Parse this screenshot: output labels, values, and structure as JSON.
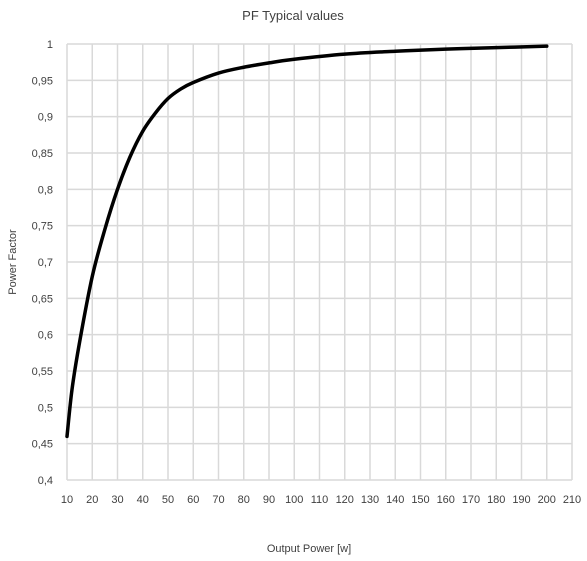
{
  "chart_data": {
    "type": "line",
    "title": "PF Typical values",
    "xlabel": "Output Power [w]",
    "ylabel": "Power Factor",
    "xlim": [
      10,
      210
    ],
    "ylim": [
      0.4,
      1.0
    ],
    "x_ticks": [
      10,
      20,
      30,
      40,
      50,
      60,
      70,
      80,
      90,
      100,
      110,
      120,
      130,
      140,
      150,
      160,
      170,
      180,
      190,
      200,
      210
    ],
    "y_ticks": [
      {
        "value": 0.4,
        "label": "0,4"
      },
      {
        "value": 0.45,
        "label": "0,45"
      },
      {
        "value": 0.5,
        "label": "0,5"
      },
      {
        "value": 0.55,
        "label": "0,55"
      },
      {
        "value": 0.6,
        "label": "0,6"
      },
      {
        "value": 0.65,
        "label": "0,65"
      },
      {
        "value": 0.7,
        "label": "0,7"
      },
      {
        "value": 0.75,
        "label": "0,75"
      },
      {
        "value": 0.8,
        "label": "0,8"
      },
      {
        "value": 0.85,
        "label": "0,85"
      },
      {
        "value": 0.9,
        "label": "0,9"
      },
      {
        "value": 0.95,
        "label": "0,95"
      },
      {
        "value": 1.0,
        "label": "1"
      }
    ],
    "grid": true,
    "legend": "none",
    "series": [
      {
        "color": "#000000",
        "x": [
          10,
          12,
          15,
          20,
          25,
          30,
          35,
          40,
          45,
          50,
          55,
          60,
          70,
          80,
          90,
          100,
          120,
          140,
          160,
          180,
          200
        ],
        "y": [
          0.46,
          0.525,
          0.59,
          0.68,
          0.745,
          0.8,
          0.845,
          0.88,
          0.905,
          0.925,
          0.938,
          0.947,
          0.96,
          0.968,
          0.974,
          0.979,
          0.986,
          0.99,
          0.993,
          0.995,
          0.997
        ]
      }
    ]
  },
  "colors": {
    "grid": "#d9d9d9",
    "text": "#404040",
    "line": "#000000",
    "background": "#ffffff"
  }
}
